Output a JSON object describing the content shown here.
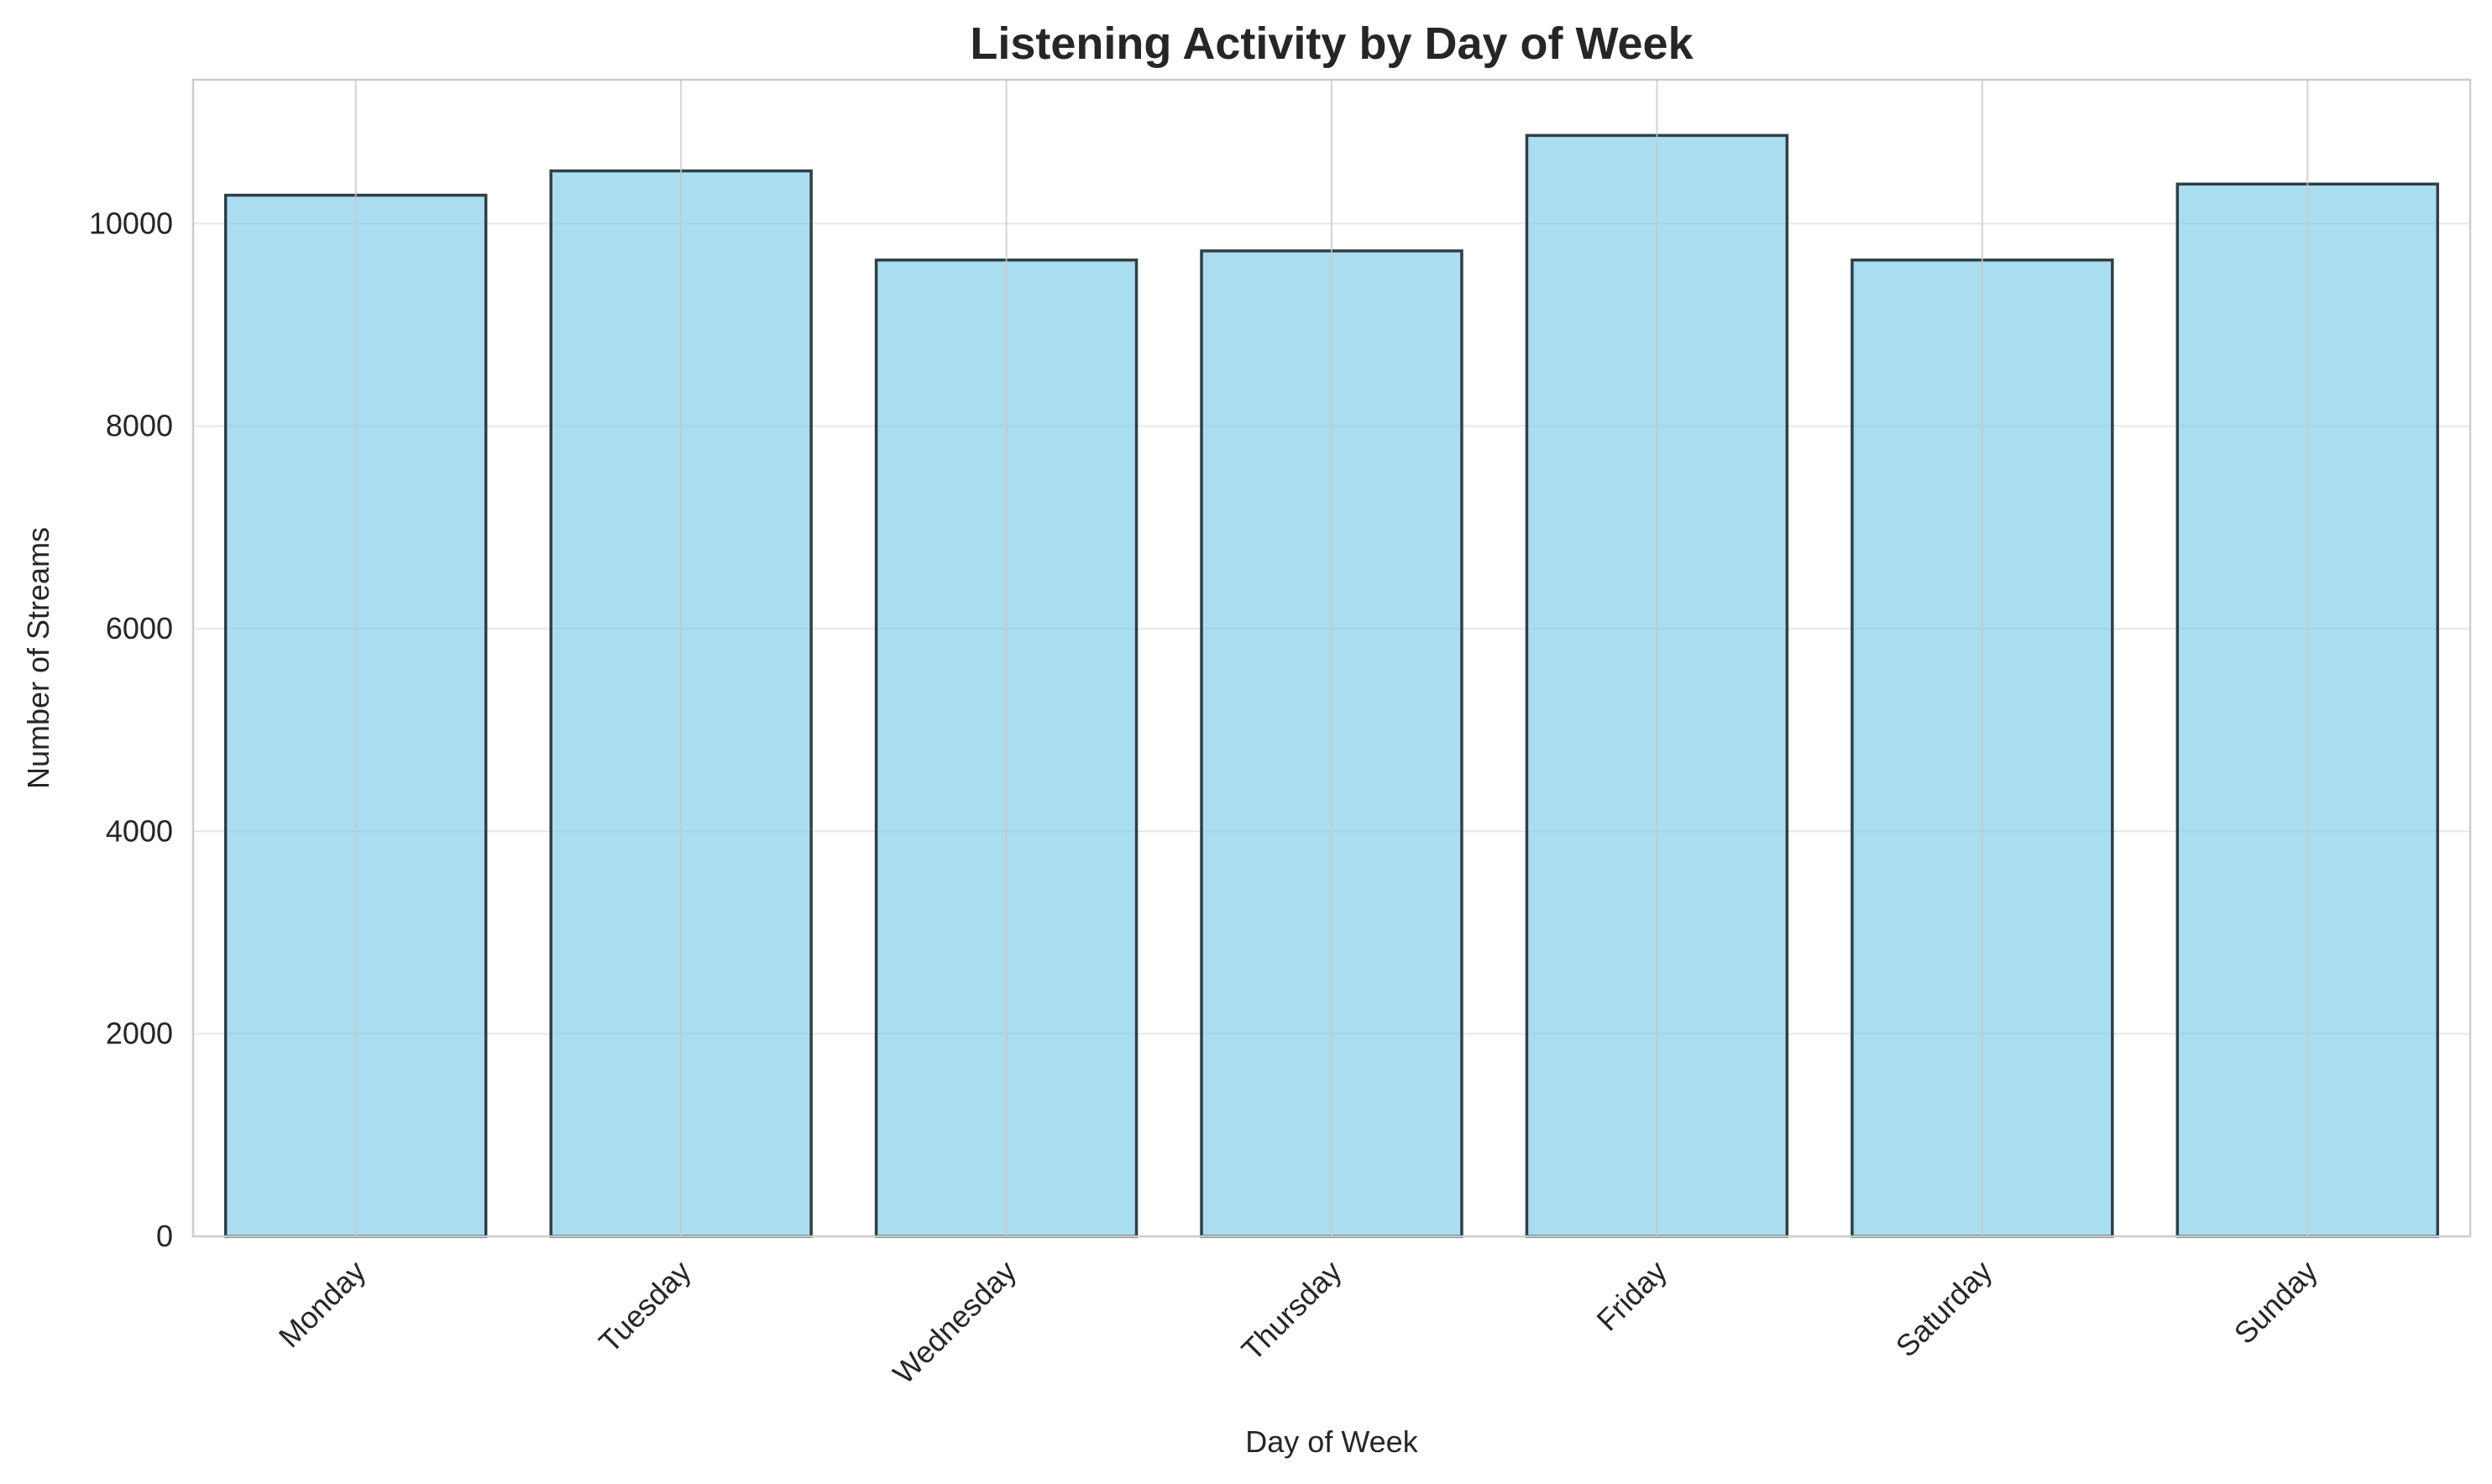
{
  "chart_data": {
    "type": "bar",
    "title": "Listening Activity by Day of Week",
    "xlabel": "Day of Week",
    "ylabel": "Number of Streams",
    "categories": [
      "Monday",
      "Tuesday",
      "Wednesday",
      "Thursday",
      "Friday",
      "Saturday",
      "Sunday"
    ],
    "values": [
      10280,
      10520,
      9640,
      9730,
      10870,
      9640,
      10390
    ],
    "ylim": [
      0,
      11420
    ],
    "yticks": [
      0,
      2000,
      4000,
      6000,
      8000,
      10000
    ],
    "ytick_labels": [
      "0",
      "2000",
      "4000",
      "6000",
      "8000",
      "10000"
    ],
    "grid": true,
    "colors": {
      "bar_fill": "#87ceeb",
      "bar_edge": "#2f3f45",
      "grid": "#e6e6e6",
      "vgrid": "#c8c8c8",
      "spine": "#cccccc",
      "text": "#262626"
    }
  }
}
